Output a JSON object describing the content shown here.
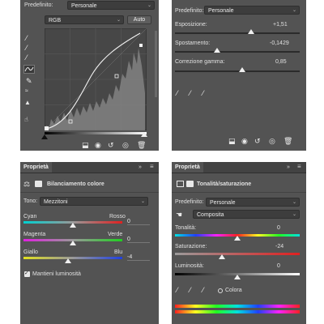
{
  "curves": {
    "preset_label": "Predefinito:",
    "preset_value": "Personale",
    "channel": "RGB",
    "auto_label": "Auto"
  },
  "exposure": {
    "preset_label": "Predefinito:",
    "preset_value": "Personale",
    "sliders": [
      {
        "label": "Esposizione:",
        "value": "+1,51",
        "level": 0.64
      },
      {
        "label": "Spostamento:",
        "value": "-0,1429",
        "level": 0.34
      },
      {
        "label": "Correzione gamma:",
        "value": "0,85",
        "level": 0.58
      }
    ]
  },
  "color_balance": {
    "tab": "Proprietà",
    "title": "Bilanciamento colore",
    "tone_label": "Tono:",
    "tone_value": "Mezzitoni",
    "rows": [
      {
        "left": "Cyan",
        "right": "Rosso",
        "value": "0",
        "level": 0.5
      },
      {
        "left": "Magenta",
        "right": "Verde",
        "value": "0",
        "level": 0.5
      },
      {
        "left": "Giallo",
        "right": "Blu",
        "value": "-4",
        "level": 0.45
      }
    ],
    "preserve_label": "Mantieni luminosità"
  },
  "hue_sat": {
    "tab": "Proprietà",
    "title": "Tonalità/saturazione",
    "preset_label": "Predefinito:",
    "preset_value": "Personale",
    "channel": "Composita",
    "rows": [
      {
        "label": "Tonalità:",
        "value": "0",
        "level": 0.5
      },
      {
        "label": "Saturazione:",
        "value": "-24",
        "level": 0.38
      },
      {
        "label": "Luminosità:",
        "value": "0",
        "level": 0.5
      }
    ],
    "colorize_label": "Colora"
  },
  "colors": {
    "panel": "#535353",
    "header": "#434343",
    "field": "#3d3d3d"
  }
}
